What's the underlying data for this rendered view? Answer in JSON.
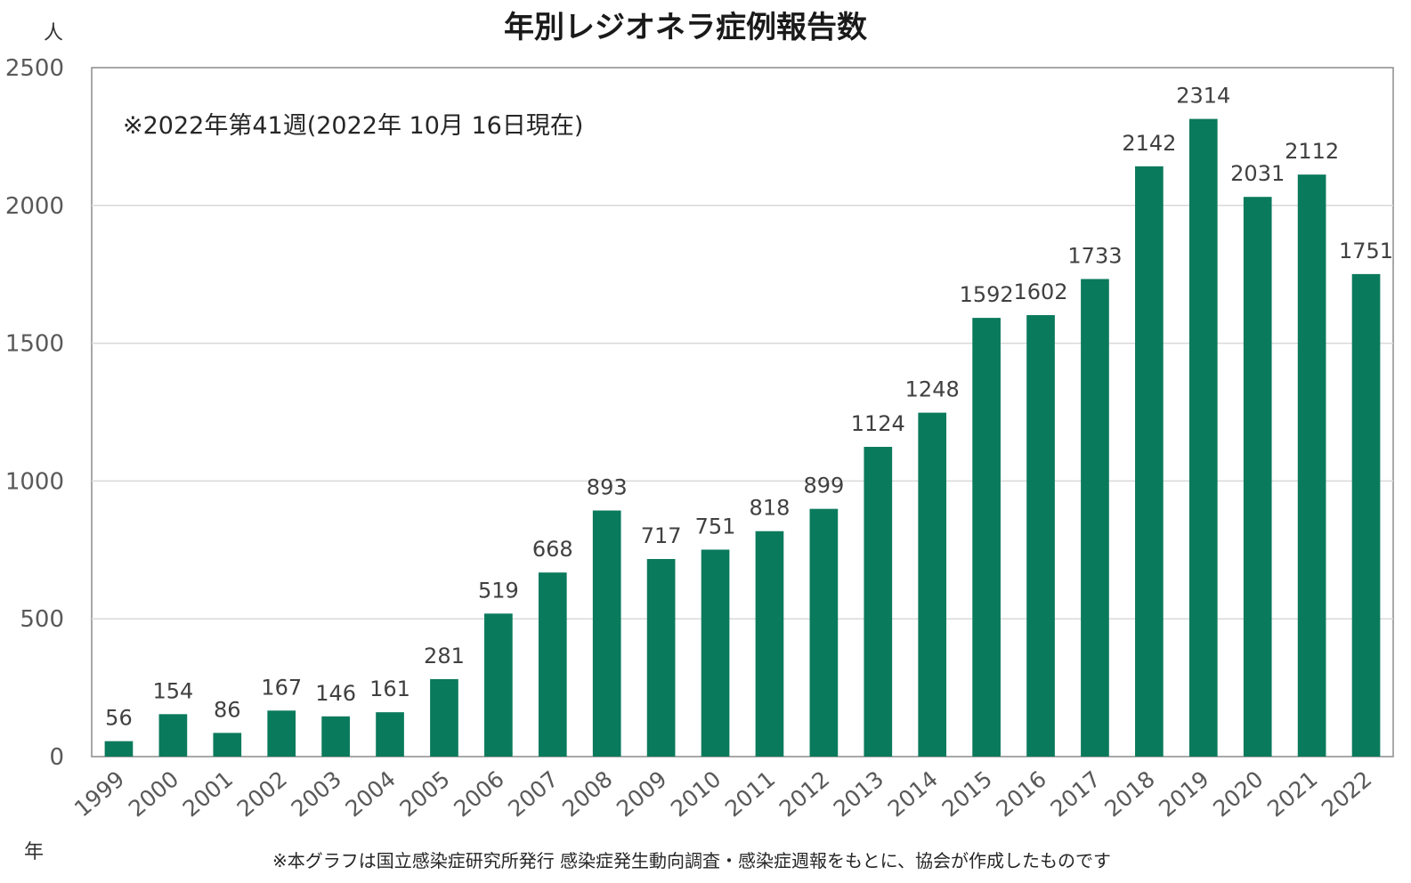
{
  "chart_data": {
    "type": "bar",
    "title": "年別レジオネラ症例報告数",
    "ylabel": "人",
    "xlabel": "年",
    "ylim": [
      0,
      2500
    ],
    "yticks": [
      0,
      500,
      1000,
      1500,
      2000,
      2500
    ],
    "grid": true,
    "legend": "none",
    "bar_color": "#0a7a5c",
    "categories": [
      "1999",
      "2000",
      "2001",
      "2002",
      "2003",
      "2004",
      "2005",
      "2006",
      "2007",
      "2008",
      "2009",
      "2010",
      "2011",
      "2012",
      "2013",
      "2014",
      "2015",
      "2016",
      "2017",
      "2018",
      "2019",
      "2020",
      "2021",
      "2022"
    ],
    "values": [
      56,
      154,
      86,
      167,
      146,
      161,
      281,
      519,
      668,
      893,
      717,
      751,
      818,
      899,
      1124,
      1248,
      1592,
      1602,
      1733,
      2142,
      2314,
      2031,
      2112,
      1751
    ],
    "annotation": "※2022年第41週(2022年 10月 16日現在)",
    "source_note": "※本グラフは国立感染症研究所発行 感染症発生動向調査・感染症週報をもとに、協会が作成したものです"
  }
}
